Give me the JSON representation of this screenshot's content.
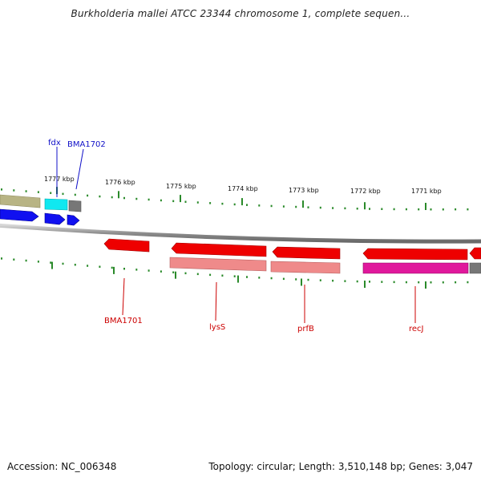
{
  "title": "Burkholderia mallei ATCC 23344 chromosome 1, complete sequen...",
  "footer": {
    "accession": "Accession: NC_006348",
    "info": "Topology: circular; Length: 3,510,148 bp; Genes: 3,047"
  },
  "scale_labels": [
    "1777 kbp",
    "1776 kbp",
    "1775 kbp",
    "1774 kbp",
    "1773 kbp",
    "1772 kbp",
    "1771 kbp"
  ],
  "genes_top": [
    {
      "name": "fdx"
    },
    {
      "name": "BMA1702"
    }
  ],
  "genes_bottom": [
    {
      "name": "BMA1701"
    },
    {
      "name": "lysS"
    },
    {
      "name": "prfB"
    },
    {
      "name": "recJ"
    }
  ],
  "colors": {
    "forward_gene": "#1010f0",
    "reverse_gene": "#ee0000",
    "reverse_gene_light": "#ef8a8a",
    "magenta_feature": "#e0189c",
    "cyan_feature": "#10e8f0",
    "olive_feature": "#b8b484",
    "grey_feature": "#777777",
    "backbone": "#8a8a8a",
    "tick": "#2a8a2a",
    "top_label": "#1010c8",
    "bottom_label": "#cc0000"
  }
}
